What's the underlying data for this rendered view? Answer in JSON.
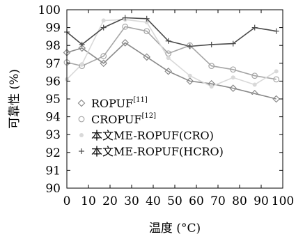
{
  "chart_data": {
    "type": "line",
    "xlabel": "温度 (°C)",
    "ylabel": "可靠性 (%)",
    "xlim": [
      0,
      100
    ],
    "ylim": [
      90,
      100
    ],
    "xticks": [
      0,
      10,
      20,
      30,
      40,
      50,
      60,
      70,
      80,
      90,
      100
    ],
    "yticks": [
      90,
      91,
      92,
      93,
      94,
      95,
      96,
      97,
      98,
      99,
      100
    ],
    "grid": false,
    "legend_position": "bottom-left",
    "series": [
      {
        "name": "ROPUF",
        "ref": "[11]",
        "marker": "diamond",
        "color": "#8a8a8a",
        "x": [
          0,
          7,
          17,
          27,
          37,
          47,
          57,
          67,
          77,
          87,
          97
        ],
        "y": [
          97.6,
          97.85,
          97.0,
          98.15,
          97.35,
          96.55,
          96.0,
          95.85,
          95.6,
          95.3,
          95.0
        ]
      },
      {
        "name": "CROPUF",
        "ref": "[12]",
        "marker": "circle",
        "color": "#a6a6a6",
        "x": [
          0,
          7,
          17,
          27,
          37,
          47,
          57,
          67,
          77,
          87,
          97
        ],
        "y": [
          97.05,
          96.85,
          97.4,
          99.05,
          98.8,
          97.55,
          98.0,
          96.85,
          96.65,
          96.3,
          96.1
        ]
      },
      {
        "name": "本文ME-ROPUF(CRO)",
        "marker": "dot",
        "color": "#d9d9d9",
        "x": [
          0,
          7,
          17,
          27,
          37,
          47,
          57,
          67,
          77,
          87,
          97
        ],
        "y": [
          96.1,
          96.95,
          99.4,
          99.45,
          99.3,
          97.3,
          96.3,
          95.7,
          96.2,
          95.8,
          96.55
        ]
      },
      {
        "name": "本文ME-ROPUF(HCRO)",
        "marker": "plus",
        "color": "#4a4a4a",
        "x": [
          0,
          7,
          17,
          27,
          37,
          47,
          57,
          67,
          77,
          87,
          97
        ],
        "y": [
          98.75,
          98.05,
          99.0,
          99.55,
          99.5,
          98.25,
          97.95,
          98.05,
          98.1,
          99.0,
          98.8
        ]
      }
    ]
  }
}
